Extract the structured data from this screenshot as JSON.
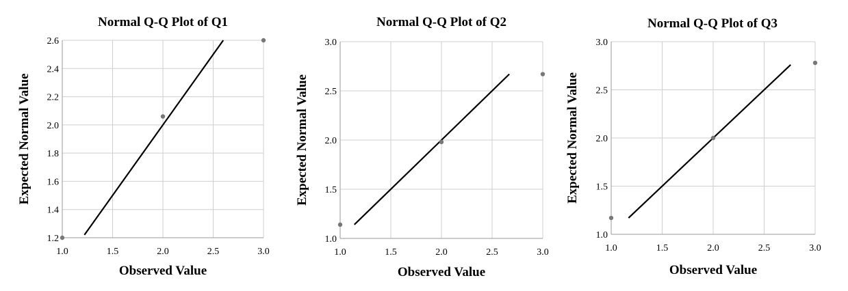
{
  "chart_data": [
    {
      "type": "scatter",
      "title": "Normal Q-Q Plot of Q1",
      "xlabel": "Observed Value",
      "ylabel": "Expected Normal Value",
      "xlim": [
        1.0,
        3.0
      ],
      "ylim": [
        1.2,
        2.6
      ],
      "xticks": [
        "1.0",
        "1.5",
        "2.0",
        "2.5",
        "3.0"
      ],
      "yticks": [
        "1.2",
        "1.4",
        "1.6",
        "1.8",
        "2.0",
        "2.2",
        "2.4",
        "2.6"
      ],
      "grid": true,
      "points": [
        {
          "x": 1.0,
          "y": 1.2
        },
        {
          "x": 2.0,
          "y": 2.06
        },
        {
          "x": 3.0,
          "y": 2.6
        }
      ],
      "reference_line": [
        [
          1.22,
          1.22
        ],
        [
          2.6,
          2.6
        ]
      ]
    },
    {
      "type": "scatter",
      "title": "Normal Q-Q Plot of Q2",
      "xlabel": "Observed Value",
      "ylabel": "Expected Normal Value",
      "xlim": [
        1.0,
        3.0
      ],
      "ylim": [
        1.0,
        3.0
      ],
      "xticks": [
        "1.0",
        "1.5",
        "2.0",
        "2.5",
        "3.0"
      ],
      "yticks": [
        "1.0",
        "1.5",
        "2.0",
        "2.5",
        "3.0"
      ],
      "grid": true,
      "points": [
        {
          "x": 1.0,
          "y": 1.14
        },
        {
          "x": 2.0,
          "y": 1.98
        },
        {
          "x": 3.0,
          "y": 2.67
        }
      ],
      "reference_line": [
        [
          1.14,
          1.14
        ],
        [
          2.67,
          2.67
        ]
      ]
    },
    {
      "type": "scatter",
      "title": "Normal Q-Q Plot of Q3",
      "xlabel": "Observed Value",
      "ylabel": "Expected Normal Value",
      "xlim": [
        1.0,
        3.0
      ],
      "ylim": [
        1.0,
        3.0
      ],
      "xticks": [
        "1.0",
        "1.5",
        "2.0",
        "2.5",
        "3.0"
      ],
      "yticks": [
        "1.0",
        "1.5",
        "2.0",
        "2.5",
        "3.0"
      ],
      "grid": true,
      "points": [
        {
          "x": 1.0,
          "y": 1.17
        },
        {
          "x": 2.0,
          "y": 2.0
        },
        {
          "x": 3.0,
          "y": 2.78
        }
      ],
      "reference_line": [
        [
          1.17,
          1.17
        ],
        [
          2.76,
          2.76
        ]
      ]
    }
  ],
  "colors": {
    "grid": "#cfcfcf",
    "axis": "#9a9a9a",
    "point": "#777777",
    "line": "#000000"
  }
}
